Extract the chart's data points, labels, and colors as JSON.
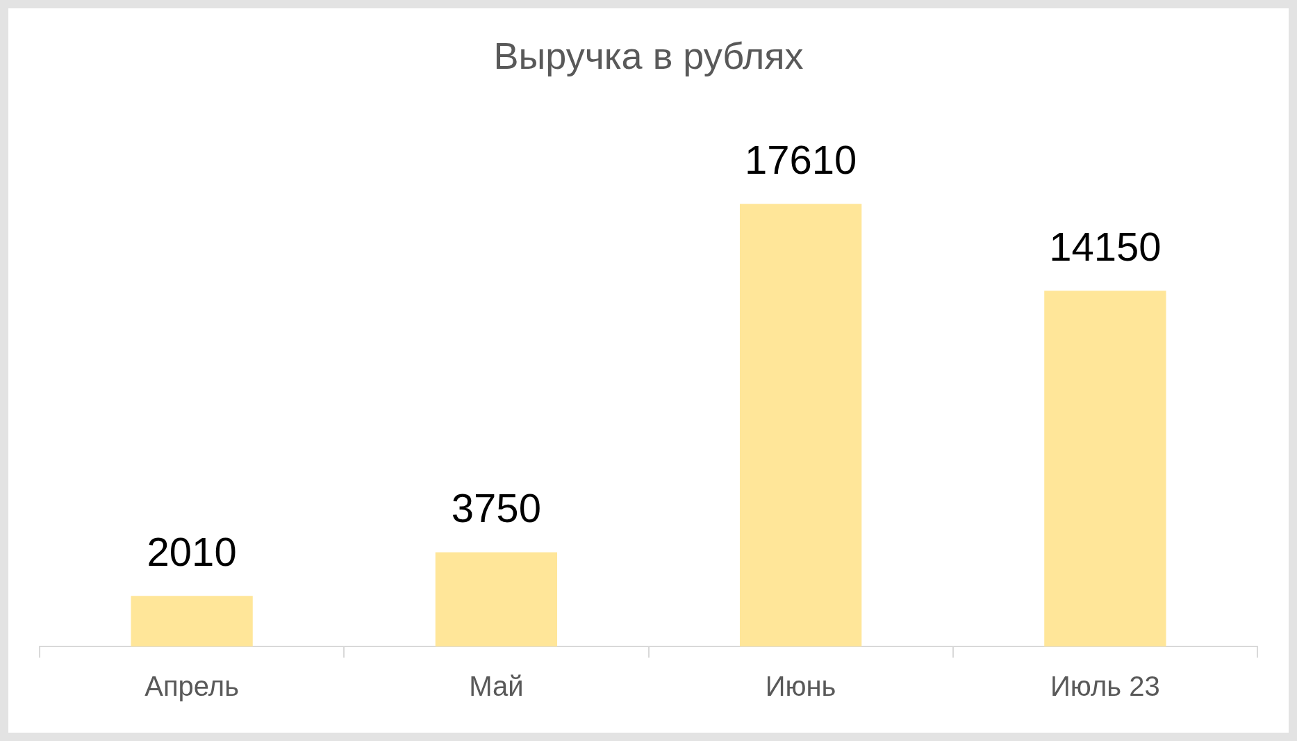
{
  "chart_data": {
    "type": "bar",
    "title": "Выручка в рублях",
    "categories": [
      "Апрель",
      "Май",
      "Июнь",
      "Июль 23"
    ],
    "values": [
      2010,
      3750,
      17610,
      14150
    ],
    "color": "#ffe699",
    "data_labels": true,
    "tick_labels": "x"
  }
}
